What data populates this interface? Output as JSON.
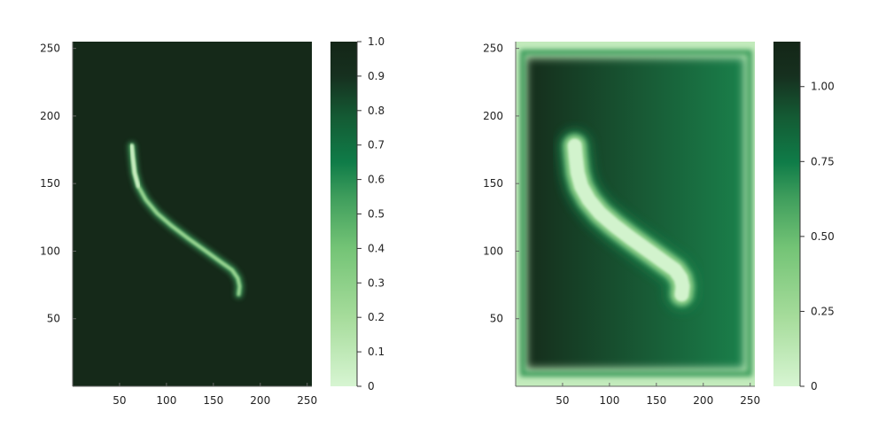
{
  "colors": {
    "background": "#ffffff",
    "axis": "#666666",
    "scale": [
      "#d7f5d2",
      "#a6dc9b",
      "#74c476",
      "#3e9d5c",
      "#0f7c48",
      "#145b34",
      "#16301f",
      "#142617"
    ]
  },
  "chart_data": [
    {
      "type": "heatmap",
      "title": "",
      "xlabel": "",
      "ylabel": "",
      "xlim": [
        0,
        255
      ],
      "ylim": [
        0,
        255
      ],
      "xticks": [
        50,
        100,
        150,
        200,
        250
      ],
      "yticks": [
        50,
        100,
        150,
        200,
        250
      ],
      "grid": false,
      "curve": {
        "x": [
          63,
          64,
          66,
          70,
          78,
          90,
          105,
          122,
          140,
          158,
          170,
          176,
          178,
          177
        ],
        "y": [
          178,
          170,
          158,
          148,
          138,
          128,
          119,
          110,
          101,
          92,
          86,
          80,
          74,
          68
        ]
      },
      "background_value": 0.97,
      "band_peak_value": 0.0,
      "gradient_left_right": [
        0.97,
        0.97
      ],
      "border_band": false,
      "colorbar": {
        "min": 0,
        "max": 1.0,
        "ticks": [
          0,
          0.1,
          0.2,
          0.3,
          0.4,
          0.5,
          0.6,
          0.7,
          0.8,
          0.9,
          1.0
        ],
        "tick_labels": [
          "0",
          "0.1",
          "0.2",
          "0.3",
          "0.4",
          "0.5",
          "0.6",
          "0.7",
          "0.8",
          "0.9",
          "1.0"
        ]
      }
    },
    {
      "type": "heatmap",
      "title": "",
      "xlabel": "",
      "ylabel": "",
      "xlim": [
        0,
        255
      ],
      "ylim": [
        0,
        255
      ],
      "xticks": [
        50,
        100,
        150,
        200,
        250
      ],
      "yticks": [
        50,
        100,
        150,
        200,
        250
      ],
      "grid": false,
      "curve": {
        "x": [
          63,
          64,
          66,
          70,
          78,
          90,
          105,
          122,
          140,
          158,
          170,
          176,
          178,
          177
        ],
        "y": [
          178,
          170,
          158,
          148,
          138,
          128,
          119,
          110,
          101,
          92,
          86,
          80,
          74,
          68
        ]
      },
      "background_value": 1.05,
      "band_peak_value": 0.0,
      "gradient_left_right": [
        1.12,
        0.72
      ],
      "border_band": true,
      "colorbar": {
        "min": 0,
        "max": 1.15,
        "ticks": [
          0,
          0.25,
          0.5,
          0.75,
          1.0
        ],
        "tick_labels": [
          "0",
          "0.25",
          "0.50",
          "0.75",
          "1.00"
        ]
      }
    }
  ]
}
